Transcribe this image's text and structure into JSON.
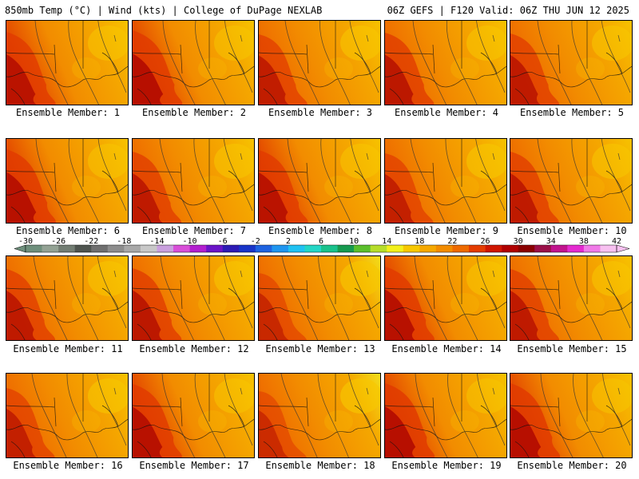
{
  "header": {
    "left": "850mb Temp (°C) | Wind (kts) | College of DuPage NEXLAB",
    "right": "06Z GEFS | F120 Valid: 06Z THU JUN 12 2025"
  },
  "members": [
    {
      "label": "Ensemble Member: 1",
      "heat": 0.8
    },
    {
      "label": "Ensemble Member: 2",
      "heat": 0.9
    },
    {
      "label": "Ensemble Member: 3",
      "heat": 0.65
    },
    {
      "label": "Ensemble Member: 4",
      "heat": 0.75
    },
    {
      "label": "Ensemble Member: 5",
      "heat": 0.7
    },
    {
      "label": "Ensemble Member: 6",
      "heat": 0.85
    },
    {
      "label": "Ensemble Member: 7",
      "heat": 0.7
    },
    {
      "label": "Ensemble Member: 8",
      "heat": 0.8
    },
    {
      "label": "Ensemble Member: 9",
      "heat": 0.6
    },
    {
      "label": "Ensemble Member: 10",
      "heat": 0.7
    },
    {
      "label": "Ensemble Member: 11",
      "heat": 0.7
    },
    {
      "label": "Ensemble Member: 12",
      "heat": 0.75
    },
    {
      "label": "Ensemble Member: 13",
      "heat": 0.45
    },
    {
      "label": "Ensemble Member: 14",
      "heat": 0.85
    },
    {
      "label": "Ensemble Member: 15",
      "heat": 0.7
    },
    {
      "label": "Ensemble Member: 16",
      "heat": 0.6
    },
    {
      "label": "Ensemble Member: 17",
      "heat": 0.85
    },
    {
      "label": "Ensemble Member: 18",
      "heat": 0.4
    },
    {
      "label": "Ensemble Member: 19",
      "heat": 0.9
    },
    {
      "label": "Ensemble Member: 20",
      "heat": 0.9
    }
  ],
  "colorbar": {
    "ticks": [
      "-30",
      "-26",
      "-22",
      "-18",
      "-14",
      "-10",
      "-6",
      "-2",
      "2",
      "6",
      "10",
      "14",
      "18",
      "22",
      "26",
      "30",
      "34",
      "38",
      "42"
    ],
    "colors": [
      "#6e8f7c",
      "#93a294",
      "#727d73",
      "#4e544f",
      "#6f6f6f",
      "#8d8d8d",
      "#a8a8a8",
      "#c8c8c8",
      "#c9a0de",
      "#d84fd8",
      "#b21fcf",
      "#6a14c8",
      "#2d1bb5",
      "#1835c8",
      "#1e63e0",
      "#1f95ef",
      "#20c2f2",
      "#24d6c6",
      "#19c28c",
      "#169a4f",
      "#5bbf2c",
      "#b6dd2a",
      "#f2f01c",
      "#f7c800",
      "#f5a800",
      "#f28c00",
      "#ee6a00",
      "#e43c00",
      "#cf1600",
      "#b00000",
      "#8a0000",
      "#9a1048",
      "#c1148e",
      "#e42bd0",
      "#f07ae8",
      "#f7c0f0"
    ]
  }
}
